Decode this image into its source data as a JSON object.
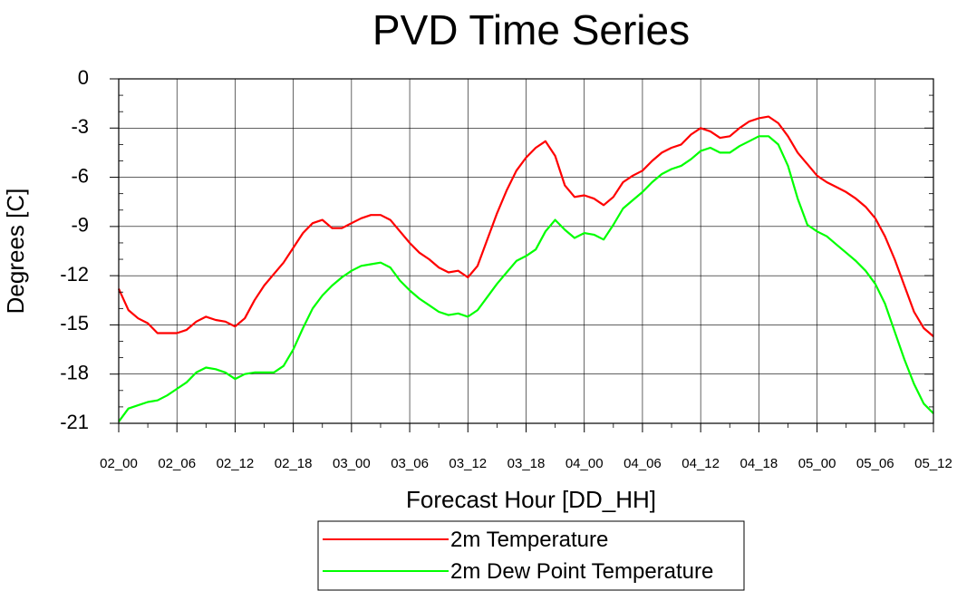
{
  "chart_data": {
    "type": "line",
    "title": "PVD Time Series",
    "xlabel": "Forecast Hour [DD_HH]",
    "ylabel": "Degrees [C]",
    "ylim": [
      -21,
      0
    ],
    "yticks": [
      0,
      -3,
      -6,
      -9,
      -12,
      -15,
      -18,
      -21
    ],
    "xlim": [
      0,
      84
    ],
    "xticks": [
      0,
      6,
      12,
      18,
      24,
      30,
      36,
      42,
      48,
      54,
      60,
      66,
      72,
      78,
      84
    ],
    "xtick_labels": [
      "02_00",
      "02_06",
      "02_12",
      "02_18",
      "03_00",
      "03_06",
      "03_12",
      "03_18",
      "04_00",
      "04_06",
      "04_12",
      "04_18",
      "05_00",
      "05_06",
      "05_12"
    ],
    "grid": true,
    "legend_position": "bottom",
    "series": [
      {
        "name": "2m Temperature",
        "color": "#ff0000",
        "x": [
          0,
          1,
          2,
          3,
          4,
          5,
          6,
          7,
          8,
          9,
          10,
          11,
          12,
          13,
          14,
          15,
          16,
          17,
          18,
          19,
          20,
          21,
          22,
          23,
          24,
          25,
          26,
          27,
          28,
          29,
          30,
          31,
          32,
          33,
          34,
          35,
          36,
          37,
          38,
          39,
          40,
          41,
          42,
          43,
          44,
          45,
          46,
          47,
          48,
          49,
          50,
          51,
          52,
          53,
          54,
          55,
          56,
          57,
          58,
          59,
          60,
          61,
          62,
          63,
          64,
          65,
          66,
          67,
          68,
          69,
          70,
          71,
          72,
          73,
          74,
          75,
          76,
          77,
          78,
          79,
          80,
          81,
          82,
          83,
          84
        ],
        "values": [
          -12.8,
          -14.1,
          -14.6,
          -14.9,
          -15.5,
          -15.5,
          -15.5,
          -15.3,
          -14.8,
          -14.5,
          -14.7,
          -14.8,
          -15.1,
          -14.6,
          -13.5,
          -12.6,
          -11.9,
          -11.2,
          -10.3,
          -9.4,
          -8.8,
          -8.6,
          -9.1,
          -9.1,
          -8.8,
          -8.5,
          -8.3,
          -8.3,
          -8.6,
          -9.3,
          -10.0,
          -10.6,
          -11.0,
          -11.5,
          -11.8,
          -11.7,
          -12.1,
          -11.4,
          -9.8,
          -8.2,
          -6.8,
          -5.6,
          -4.8,
          -4.2,
          -3.8,
          -4.7,
          -6.5,
          -7.2,
          -7.1,
          -7.3,
          -7.7,
          -7.2,
          -6.3,
          -5.9,
          -5.6,
          -5.0,
          -4.5,
          -4.2,
          -4.0,
          -3.4,
          -3.0,
          -3.2,
          -3.6,
          -3.5,
          -3.0,
          -2.6,
          -2.4,
          -2.3,
          -2.7,
          -3.5,
          -4.5,
          -5.2,
          -5.9,
          -6.3,
          -6.6,
          -6.9,
          -7.3,
          -7.8,
          -8.5,
          -9.6,
          -11.0,
          -12.6,
          -14.2,
          -15.2,
          -15.7
        ]
      },
      {
        "name": "2m Dew Point Temperature",
        "color": "#00ff00",
        "x": [
          0,
          1,
          2,
          3,
          4,
          5,
          6,
          7,
          8,
          9,
          10,
          11,
          12,
          13,
          14,
          15,
          16,
          17,
          18,
          19,
          20,
          21,
          22,
          23,
          24,
          25,
          26,
          27,
          28,
          29,
          30,
          31,
          32,
          33,
          34,
          35,
          36,
          37,
          38,
          39,
          40,
          41,
          42,
          43,
          44,
          45,
          46,
          47,
          48,
          49,
          50,
          51,
          52,
          53,
          54,
          55,
          56,
          57,
          58,
          59,
          60,
          61,
          62,
          63,
          64,
          65,
          66,
          67,
          68,
          69,
          70,
          71,
          72,
          73,
          74,
          75,
          76,
          77,
          78,
          79,
          80,
          81,
          82,
          83,
          84
        ],
        "values": [
          -20.9,
          -20.1,
          -19.9,
          -19.7,
          -19.6,
          -19.3,
          -18.9,
          -18.5,
          -17.9,
          -17.6,
          -17.7,
          -17.9,
          -18.3,
          -18.0,
          -17.9,
          -17.9,
          -17.9,
          -17.5,
          -16.5,
          -15.2,
          -14.0,
          -13.2,
          -12.6,
          -12.1,
          -11.7,
          -11.4,
          -11.3,
          -11.2,
          -11.5,
          -12.3,
          -12.9,
          -13.4,
          -13.8,
          -14.2,
          -14.4,
          -14.3,
          -14.5,
          -14.1,
          -13.3,
          -12.5,
          -11.8,
          -11.1,
          -10.8,
          -10.4,
          -9.3,
          -8.6,
          -9.2,
          -9.7,
          -9.4,
          -9.5,
          -9.8,
          -8.9,
          -7.9,
          -7.4,
          -6.9,
          -6.3,
          -5.8,
          -5.5,
          -5.3,
          -4.9,
          -4.4,
          -4.2,
          -4.5,
          -4.5,
          -4.1,
          -3.8,
          -3.5,
          -3.5,
          -4.0,
          -5.3,
          -7.3,
          -8.9,
          -9.3,
          -9.6,
          -10.1,
          -10.6,
          -11.1,
          -11.7,
          -12.5,
          -13.7,
          -15.4,
          -17.1,
          -18.6,
          -19.8,
          -20.4
        ]
      }
    ]
  }
}
